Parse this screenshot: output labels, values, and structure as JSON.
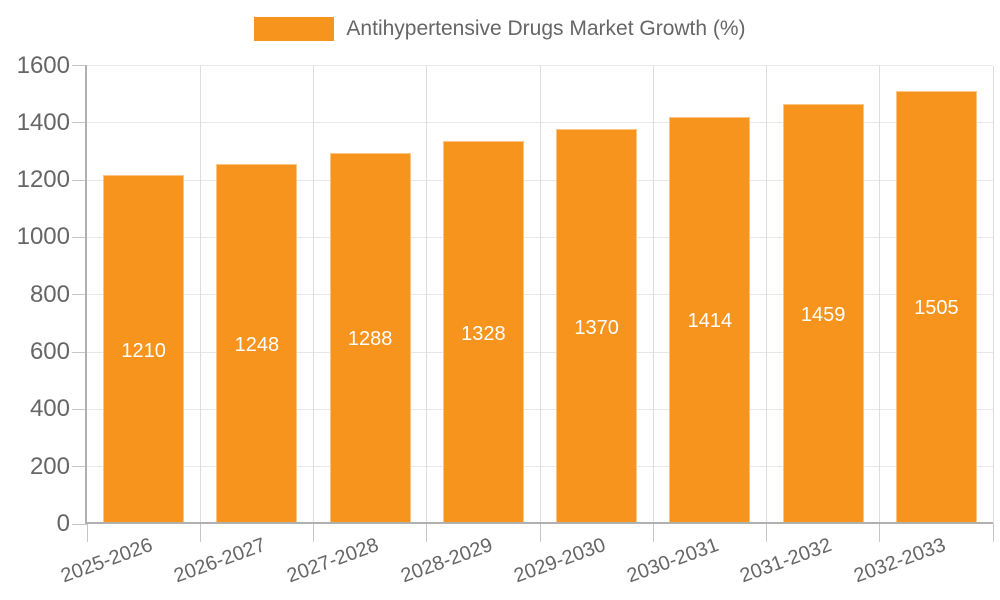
{
  "legend": {
    "label": "Antihypertensive Drugs Market Growth (%)"
  },
  "chart_data": {
    "type": "bar",
    "title": "Antihypertensive Drugs Market Growth (%)",
    "series_name": "Antihypertensive Drugs Market Growth (%)",
    "categories": [
      "2025-2026",
      "2026-2027",
      "2027-2028",
      "2028-2029",
      "2029-2030",
      "2030-2031",
      "2031-2032",
      "2032-2033"
    ],
    "values": [
      1210,
      1248,
      1288,
      1328,
      1370,
      1414,
      1459,
      1505
    ],
    "bar_labels": [
      "1210",
      "1248",
      "1288",
      "1328",
      "1370",
      "1414",
      "1459",
      "1505"
    ],
    "xlabel": "",
    "ylabel": "",
    "ylim": [
      0,
      1600
    ],
    "y_ticks": [
      0,
      200,
      400,
      600,
      800,
      1000,
      1200,
      1400,
      1600
    ],
    "grid": true,
    "legend_position": "top",
    "colors": {
      "bar": "#f7941e",
      "bar_value_label": "#ffffff",
      "axis_label": "#666666",
      "legend_label": "#666666",
      "h_gridline": "#e8e8e8",
      "v_gridline": "#dddddd",
      "axis_line": "#b0b0b0",
      "tick": "#c6c6c6"
    }
  }
}
